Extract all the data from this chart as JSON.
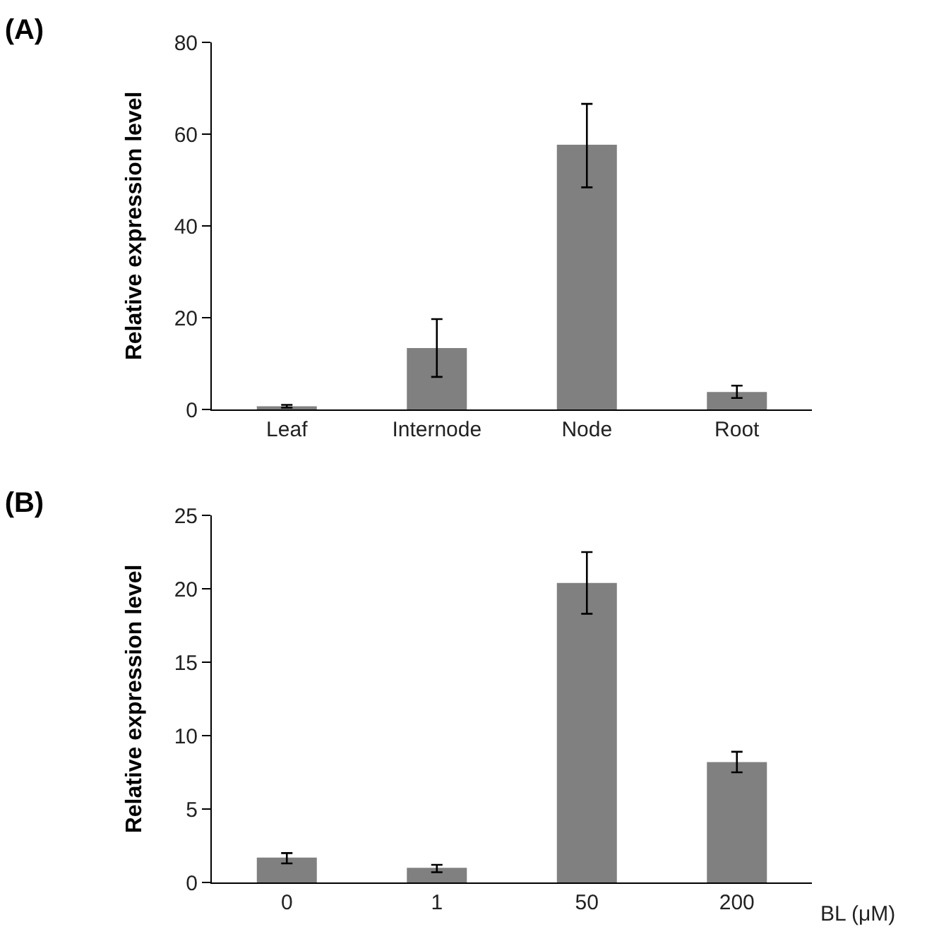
{
  "chart_data": [
    {
      "type": "bar",
      "title": "(A)",
      "ylabel": "Relative expression level",
      "categories": [
        "Leaf",
        "Internode",
        "Node",
        "Root"
      ],
      "values": [
        0.7,
        13.4,
        57.7,
        3.8
      ],
      "color": "#808080",
      "errors": [
        [
          0.4,
          1.0
        ],
        [
          7.1,
          19.7
        ],
        [
          48.4,
          66.6
        ],
        [
          2.5,
          5.2
        ]
      ],
      "ylim": [
        0,
        80
      ],
      "yticks": [
        0,
        20,
        40,
        60,
        80
      ],
      "grid": false,
      "legend": false
    },
    {
      "type": "bar",
      "title": "(B)",
      "ylabel": "Relative expression level",
      "xlabel": "BL (μM)",
      "categories": [
        "0",
        "1",
        "50",
        "200"
      ],
      "values": [
        1.7,
        1.0,
        20.4,
        8.2
      ],
      "color": "#808080",
      "errors": [
        [
          1.3,
          2.0
        ],
        [
          0.7,
          1.2
        ],
        [
          18.3,
          22.5
        ],
        [
          7.5,
          8.9
        ]
      ],
      "ylim": [
        0,
        25
      ],
      "yticks": [
        0,
        5,
        10,
        15,
        20,
        25
      ],
      "grid": false,
      "legend": false
    }
  ]
}
